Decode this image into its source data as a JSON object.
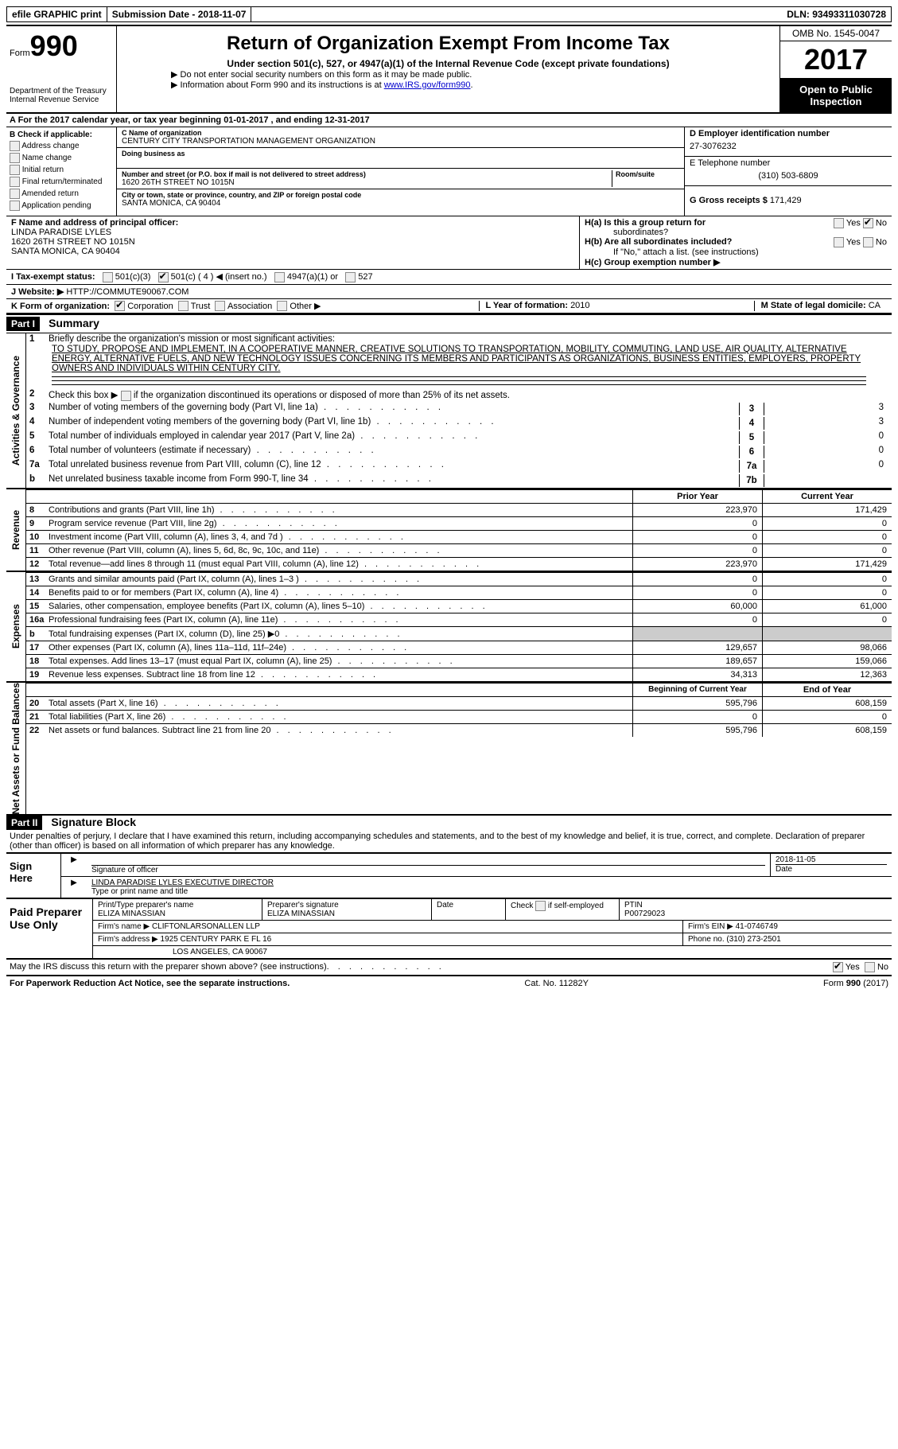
{
  "topbar": {
    "efile": "efile GRAPHIC print",
    "subdate_label": "Submission Date - ",
    "subdate": "2018-11-07",
    "dln_label": "DLN: ",
    "dln": "93493311030728"
  },
  "header": {
    "form_label": "Form",
    "form_num": "990",
    "dept1": "Department of the Treasury",
    "dept2": "Internal Revenue Service",
    "title": "Return of Organization Exempt From Income Tax",
    "subtitle": "Under section 501(c), 527, or 4947(a)(1) of the Internal Revenue Code (except private foundations)",
    "note1": "▶ Do not enter social security numbers on this form as it may be made public.",
    "note2": "▶ Information about Form 990 and its instructions is at ",
    "note2_link": "www.IRS.gov/form990",
    "omb": "OMB No. 1545-0047",
    "year": "2017",
    "open1": "Open to Public",
    "open2": "Inspection"
  },
  "row_a": "A  For the 2017 calendar year, or tax year beginning 01-01-2017   , and ending 12-31-2017",
  "box_b": {
    "title": "B Check if applicable:",
    "items": [
      "Address change",
      "Name change",
      "Initial return",
      "Final return/terminated",
      "Amended return",
      "Application pending"
    ]
  },
  "box_c": {
    "name_label": "C Name of organization",
    "name": "CENTURY CITY TRANSPORTATION MANAGEMENT ORGANIZATION",
    "dba_label": "Doing business as",
    "addr_label": "Number and street (or P.O. box if mail is not delivered to street address)",
    "room_label": "Room/suite",
    "addr": "1620 26TH STREET NO 1015N",
    "city_label": "City or town, state or province, country, and ZIP or foreign postal code",
    "city": "SANTA MONICA, CA  90404"
  },
  "box_d": {
    "ein_label": "D Employer identification number",
    "ein": "27-3076232",
    "phone_label": "E Telephone number",
    "phone": "(310) 503-6809",
    "gross_label": "G Gross receipts $ ",
    "gross": "171,429"
  },
  "box_f": {
    "label": "F  Name and address of principal officer:",
    "name": "LINDA PARADISE LYLES",
    "addr1": "1620 26TH STREET NO 1015N",
    "addr2": "SANTA MONICA, CA  90404"
  },
  "box_h": {
    "a": "H(a)  Is this a group return for",
    "a2": "subordinates?",
    "b": "H(b)  Are all subordinates included?",
    "note": "If \"No,\" attach a list. (see instructions)",
    "c": "H(c)  Group exemption number ▶"
  },
  "row_i": {
    "label": "I  Tax-exempt status:",
    "opt1": "501(c)(3)",
    "opt2": "501(c) ( 4 ) ◀ (insert no.)",
    "opt3": "4947(a)(1) or",
    "opt4": "527"
  },
  "row_j": {
    "label": "J  Website: ▶ ",
    "val": "HTTP://COMMUTE90067.COM"
  },
  "row_k": {
    "label": "K Form of organization:",
    "opts": [
      "Corporation",
      "Trust",
      "Association",
      "Other ▶"
    ],
    "l_label": "L Year of formation: ",
    "l_val": "2010",
    "m_label": "M State of legal domicile: ",
    "m_val": "CA"
  },
  "part1": {
    "hdr": "Part I",
    "title": "Summary",
    "tab1": "Activities & Governance",
    "tab2": "Revenue",
    "tab3": "Expenses",
    "tab4": "Net Assets or Fund Balances",
    "line1_label": "Briefly describe the organization's mission or most significant activities:",
    "mission": "TO STUDY, PROPOSE AND IMPLEMENT, IN A COOPERATIVE MANNER, CREATIVE SOLUTIONS TO TRANSPORTATION, MOBILITY, COMMUTING, LAND USE, AIR QUALITY, ALTERNATIVE ENERGY, ALTERNATIVE FUELS, AND NEW TECHNOLOGY ISSUES CONCERNING ITS MEMBERS AND PARTICIPANTS AS ORGANIZATIONS, BUSINESS ENTITIES, EMPLOYERS, PROPERTY OWNERS AND INDIVIDUALS WITHIN CENTURY CITY.",
    "line2": "Check this box ▶         if the organization discontinued its operations or disposed of more than 25% of its net assets.",
    "lines": [
      {
        "n": "3",
        "t": "Number of voting members of the governing body (Part VI, line 1a)",
        "box": "3",
        "v": "3"
      },
      {
        "n": "4",
        "t": "Number of independent voting members of the governing body (Part VI, line 1b)",
        "box": "4",
        "v": "3"
      },
      {
        "n": "5",
        "t": "Total number of individuals employed in calendar year 2017 (Part V, line 2a)",
        "box": "5",
        "v": "0"
      },
      {
        "n": "6",
        "t": "Total number of volunteers (estimate if necessary)",
        "box": "6",
        "v": "0"
      },
      {
        "n": "7a",
        "t": "Total unrelated business revenue from Part VIII, column (C), line 12",
        "box": "7a",
        "v": "0"
      },
      {
        "n": "b",
        "t": "Net unrelated business taxable income from Form 990-T, line 34",
        "box": "7b",
        "v": ""
      }
    ],
    "col_prior": "Prior Year",
    "col_current": "Current Year",
    "revenue": [
      {
        "n": "8",
        "t": "Contributions and grants (Part VIII, line 1h)",
        "p": "223,970",
        "c": "171,429"
      },
      {
        "n": "9",
        "t": "Program service revenue (Part VIII, line 2g)",
        "p": "0",
        "c": "0"
      },
      {
        "n": "10",
        "t": "Investment income (Part VIII, column (A), lines 3, 4, and 7d )",
        "p": "0",
        "c": "0"
      },
      {
        "n": "11",
        "t": "Other revenue (Part VIII, column (A), lines 5, 6d, 8c, 9c, 10c, and 11e)",
        "p": "0",
        "c": "0"
      },
      {
        "n": "12",
        "t": "Total revenue—add lines 8 through 11 (must equal Part VIII, column (A), line 12)",
        "p": "223,970",
        "c": "171,429"
      }
    ],
    "expenses": [
      {
        "n": "13",
        "t": "Grants and similar amounts paid (Part IX, column (A), lines 1–3 )",
        "p": "0",
        "c": "0"
      },
      {
        "n": "14",
        "t": "Benefits paid to or for members (Part IX, column (A), line 4)",
        "p": "0",
        "c": "0"
      },
      {
        "n": "15",
        "t": "Salaries, other compensation, employee benefits (Part IX, column (A), lines 5–10)",
        "p": "60,000",
        "c": "61,000"
      },
      {
        "n": "16a",
        "t": "Professional fundraising fees (Part IX, column (A), line 11e)",
        "p": "0",
        "c": "0"
      },
      {
        "n": "b",
        "t": "Total fundraising expenses (Part IX, column (D), line 25) ▶0",
        "p": "grey",
        "c": "grey"
      },
      {
        "n": "17",
        "t": "Other expenses (Part IX, column (A), lines 11a–11d, 11f–24e)",
        "p": "129,657",
        "c": "98,066"
      },
      {
        "n": "18",
        "t": "Total expenses. Add lines 13–17 (must equal Part IX, column (A), line 25)",
        "p": "189,657",
        "c": "159,066"
      },
      {
        "n": "19",
        "t": "Revenue less expenses. Subtract line 18 from line 12",
        "p": "34,313",
        "c": "12,363"
      }
    ],
    "col_begin": "Beginning of Current Year",
    "col_end": "End of Year",
    "balances": [
      {
        "n": "20",
        "t": "Total assets (Part X, line 16)",
        "p": "595,796",
        "c": "608,159"
      },
      {
        "n": "21",
        "t": "Total liabilities (Part X, line 26)",
        "p": "0",
        "c": "0"
      },
      {
        "n": "22",
        "t": "Net assets or fund balances. Subtract line 21 from line 20",
        "p": "595,796",
        "c": "608,159"
      }
    ]
  },
  "part2": {
    "hdr": "Part II",
    "title": "Signature Block",
    "decl": "Under penalties of perjury, I declare that I have examined this return, including accompanying schedules and statements, and to the best of my knowledge and belief, it is true, correct, and complete. Declaration of preparer (other than officer) is based on all information of which preparer has any knowledge.",
    "sign_here": "Sign Here",
    "sig_officer": "Signature of officer",
    "date": "Date",
    "date_val": "2018-11-05",
    "name_title": "LINDA PARADISE LYLES  EXECUTIVE DIRECTOR",
    "type_name": "Type or print name and title"
  },
  "preparer": {
    "label": "Paid Preparer Use Only",
    "name_label": "Print/Type preparer's name",
    "name": "ELIZA MINASSIAN",
    "sig_label": "Preparer's signature",
    "sig": "ELIZA MINASSIAN",
    "date_label": "Date",
    "check_label": "Check         if self-employed",
    "ptin_label": "PTIN",
    "ptin": "P00729023",
    "firm_label": "Firm's name    ▶ ",
    "firm": "CLIFTONLARSONALLEN LLP",
    "ein_label": "Firm's EIN ▶ ",
    "ein": "41-0746749",
    "addr_label": "Firm's address ▶ ",
    "addr1": "1925 CENTURY PARK E FL 16",
    "addr2": "LOS ANGELES, CA  90067",
    "phone_label": "Phone no. ",
    "phone": "(310) 273-2501"
  },
  "footer": {
    "discuss": "May the IRS discuss this return with the preparer shown above? (see instructions)",
    "yes": "Yes",
    "no": "No",
    "paperwork": "For Paperwork Reduction Act Notice, see the separate instructions.",
    "cat": "Cat. No. 11282Y",
    "form": "Form 990 (2017)"
  }
}
